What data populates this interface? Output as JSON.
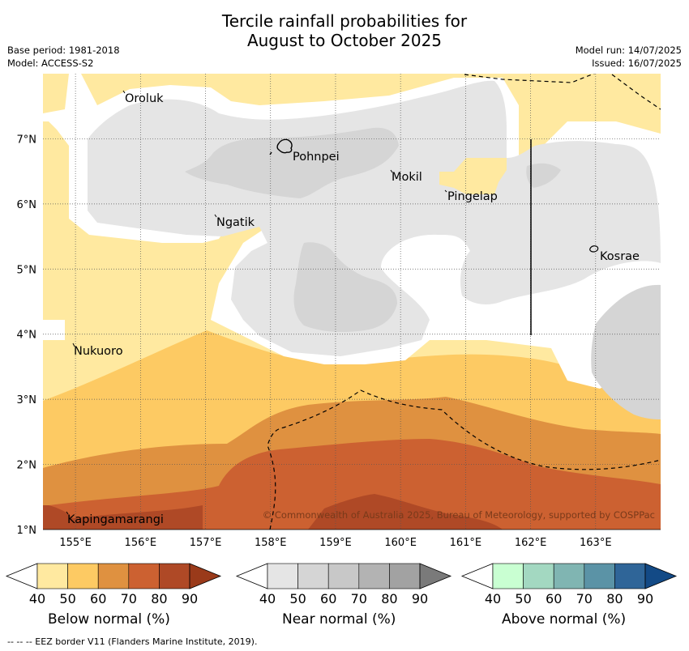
{
  "title_line1": "Tercile rainfall probabilities for",
  "title_line2": "August to October 2025",
  "meta": {
    "base_period": "Base period: 1981-2018",
    "model": "Model: ACCESS-S2",
    "model_run": "Model run: 14/07/2025",
    "issued": "Issued: 16/07/2025"
  },
  "map": {
    "lon_ticks": [
      "155°E",
      "156°E",
      "157°E",
      "158°E",
      "159°E",
      "160°E",
      "161°E",
      "162°E",
      "163°E"
    ],
    "lat_ticks": [
      "7°N",
      "6°N",
      "5°N",
      "4°N",
      "3°N",
      "2°N",
      "1°N"
    ],
    "places": [
      "Oroluk",
      "Pohnpei",
      "Mokil",
      "Pingelap",
      "Ngatik",
      "Kosrae",
      "Nukuoro",
      "Kapingamarangi"
    ],
    "copyright": "© Commonwealth of Australia 2025, Bureau of Meteorology, supported by COSPPac"
  },
  "colorbars": [
    {
      "label": "Below normal (%)",
      "ticks": [
        "40",
        "50",
        "60",
        "70",
        "80",
        "90"
      ],
      "colors": [
        "#ffffff",
        "#ffe9a0",
        "#fdca63",
        "#df9140",
        "#cc6131",
        "#af4926",
        "#9a3a1a"
      ]
    },
    {
      "label": "Near normal (%)",
      "ticks": [
        "40",
        "50",
        "60",
        "70",
        "80",
        "90"
      ],
      "colors": [
        "#ffffff",
        "#e5e5e5",
        "#d5d5d5",
        "#c8c8c8",
        "#b3b3b3",
        "#a2a2a2",
        "#7a7a7a"
      ]
    },
    {
      "label": "Above normal (%)",
      "ticks": [
        "40",
        "50",
        "60",
        "70",
        "80",
        "90"
      ],
      "colors": [
        "#ffffff",
        "#c9ffd2",
        "#a3d8c1",
        "#80b5b2",
        "#5b93a6",
        "#2f6598",
        "#134a86"
      ]
    }
  ],
  "footnote": "--  --  -- EEZ border V11 (Flanders Marine Institute, 2019)."
}
